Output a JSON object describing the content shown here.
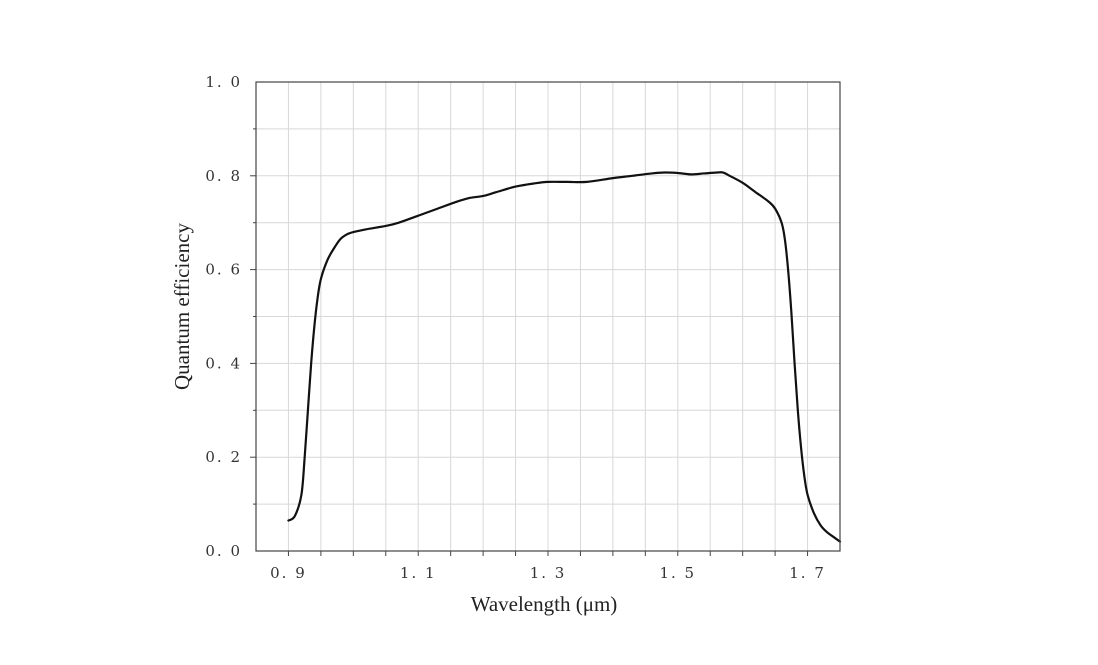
{
  "chart_data": {
    "type": "line",
    "title": "",
    "xlabel": "Wavelength (μm)",
    "ylabel": "Quantum efficiency",
    "xlim": [
      0.85,
      1.75
    ],
    "ylim": [
      0.0,
      1.0
    ],
    "x_ticks": [
      0.9,
      1.1,
      1.3,
      1.5,
      1.7
    ],
    "x_tick_labels": [
      "0. 9",
      "1. 1",
      "1. 3",
      "1. 5",
      "1. 7"
    ],
    "y_ticks": [
      0.0,
      0.2,
      0.4,
      0.6,
      0.8,
      1.0
    ],
    "y_tick_labels": [
      "0. 0",
      "0. 2",
      "0. 4",
      "0. 6",
      "0. 8",
      "1. 0"
    ],
    "x_minor_step": 0.05,
    "y_minor_step": 0.1,
    "grid": true,
    "legend": "none",
    "colors": {
      "line": "#111111",
      "grid": "#d8d8d8",
      "axis": "#444444"
    },
    "series": [
      {
        "x": [
          0.9,
          0.91,
          0.92,
          0.925,
          0.93,
          0.935,
          0.94,
          0.945,
          0.95,
          0.96,
          0.97,
          0.98,
          0.99,
          1.0,
          1.02,
          1.05,
          1.07,
          1.1,
          1.13,
          1.16,
          1.18,
          1.2,
          1.22,
          1.25,
          1.28,
          1.3,
          1.33,
          1.36,
          1.4,
          1.43,
          1.46,
          1.48,
          1.5,
          1.52,
          1.54,
          1.56,
          1.57,
          1.58,
          1.6,
          1.62,
          1.64,
          1.65,
          1.66,
          1.665,
          1.67,
          1.675,
          1.68,
          1.685,
          1.69,
          1.695,
          1.7,
          1.71,
          1.72,
          1.73,
          1.74,
          1.75
        ],
        "y": [
          0.065,
          0.075,
          0.12,
          0.2,
          0.3,
          0.4,
          0.48,
          0.54,
          0.58,
          0.62,
          0.645,
          0.665,
          0.675,
          0.68,
          0.686,
          0.693,
          0.7,
          0.715,
          0.73,
          0.745,
          0.753,
          0.757,
          0.765,
          0.777,
          0.784,
          0.787,
          0.787,
          0.787,
          0.795,
          0.8,
          0.805,
          0.807,
          0.806,
          0.803,
          0.805,
          0.807,
          0.807,
          0.8,
          0.785,
          0.765,
          0.745,
          0.73,
          0.7,
          0.665,
          0.6,
          0.51,
          0.4,
          0.3,
          0.22,
          0.16,
          0.12,
          0.08,
          0.055,
          0.04,
          0.03,
          0.02
        ]
      }
    ]
  }
}
